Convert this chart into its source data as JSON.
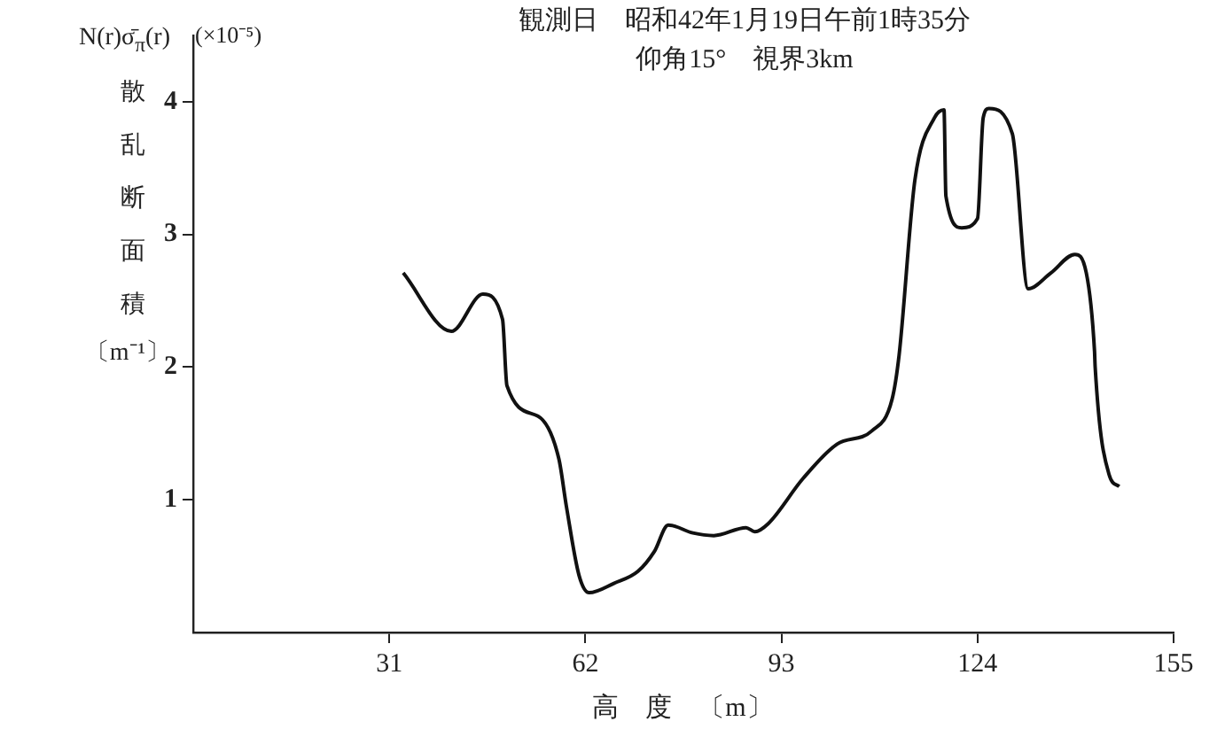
{
  "chart_data": {
    "type": "line",
    "title": "観測日　昭和42年1月19日午前1時35分",
    "subtitle": "仰角15°　視界3km",
    "ylabel": "N(r)σ̄$_{π}$(r) 散乱断面積〔m⁻¹〕",
    "xlabel": "高　度　〔m〕",
    "annotations": [
      "(×10⁻⁵)"
    ],
    "x": [
      33.2,
      40.8,
      45.8,
      48.9,
      49.6,
      54.5,
      57.8,
      59,
      61,
      62.6,
      66.5,
      70.3,
      72.9,
      75.1,
      79,
      82.3,
      87.4,
      88.8,
      90.9,
      96.4,
      101.8,
      107.3,
      110.5,
      111.6,
      114.1,
      117.2,
      118.7,
      119,
      121.5,
      124,
      124.9,
      125.8,
      129.5,
      132,
      135.6,
      139.4,
      141.2,
      142.5,
      142.6,
      144.8,
      146.4
    ],
    "series": [
      {
        "color": "#111111",
        "values": [
          2.71,
          2.27,
          2.55,
          2.36,
          1.86,
          1.63,
          1.31,
          0.95,
          0.43,
          0.3,
          0.37,
          0.46,
          0.61,
          0.81,
          0.75,
          0.73,
          0.79,
          0.76,
          0.82,
          1.16,
          1.42,
          1.52,
          1.76,
          2.09,
          3.41,
          3.88,
          3.94,
          3.29,
          3.05,
          3.12,
          3.88,
          3.95,
          3.76,
          2.59,
          2.71,
          2.85,
          2.71,
          2.12,
          2.0,
          1.19,
          1.1
        ]
      }
    ],
    "xlim": [
      0,
      155
    ],
    "xticks": [
      31,
      62,
      93,
      124,
      155
    ],
    "ylim": [
      0,
      4.5
    ],
    "yticks": [
      1,
      2,
      3,
      4
    ],
    "grid": false,
    "legend": false,
    "marker": "none",
    "line_style": "solid"
  }
}
